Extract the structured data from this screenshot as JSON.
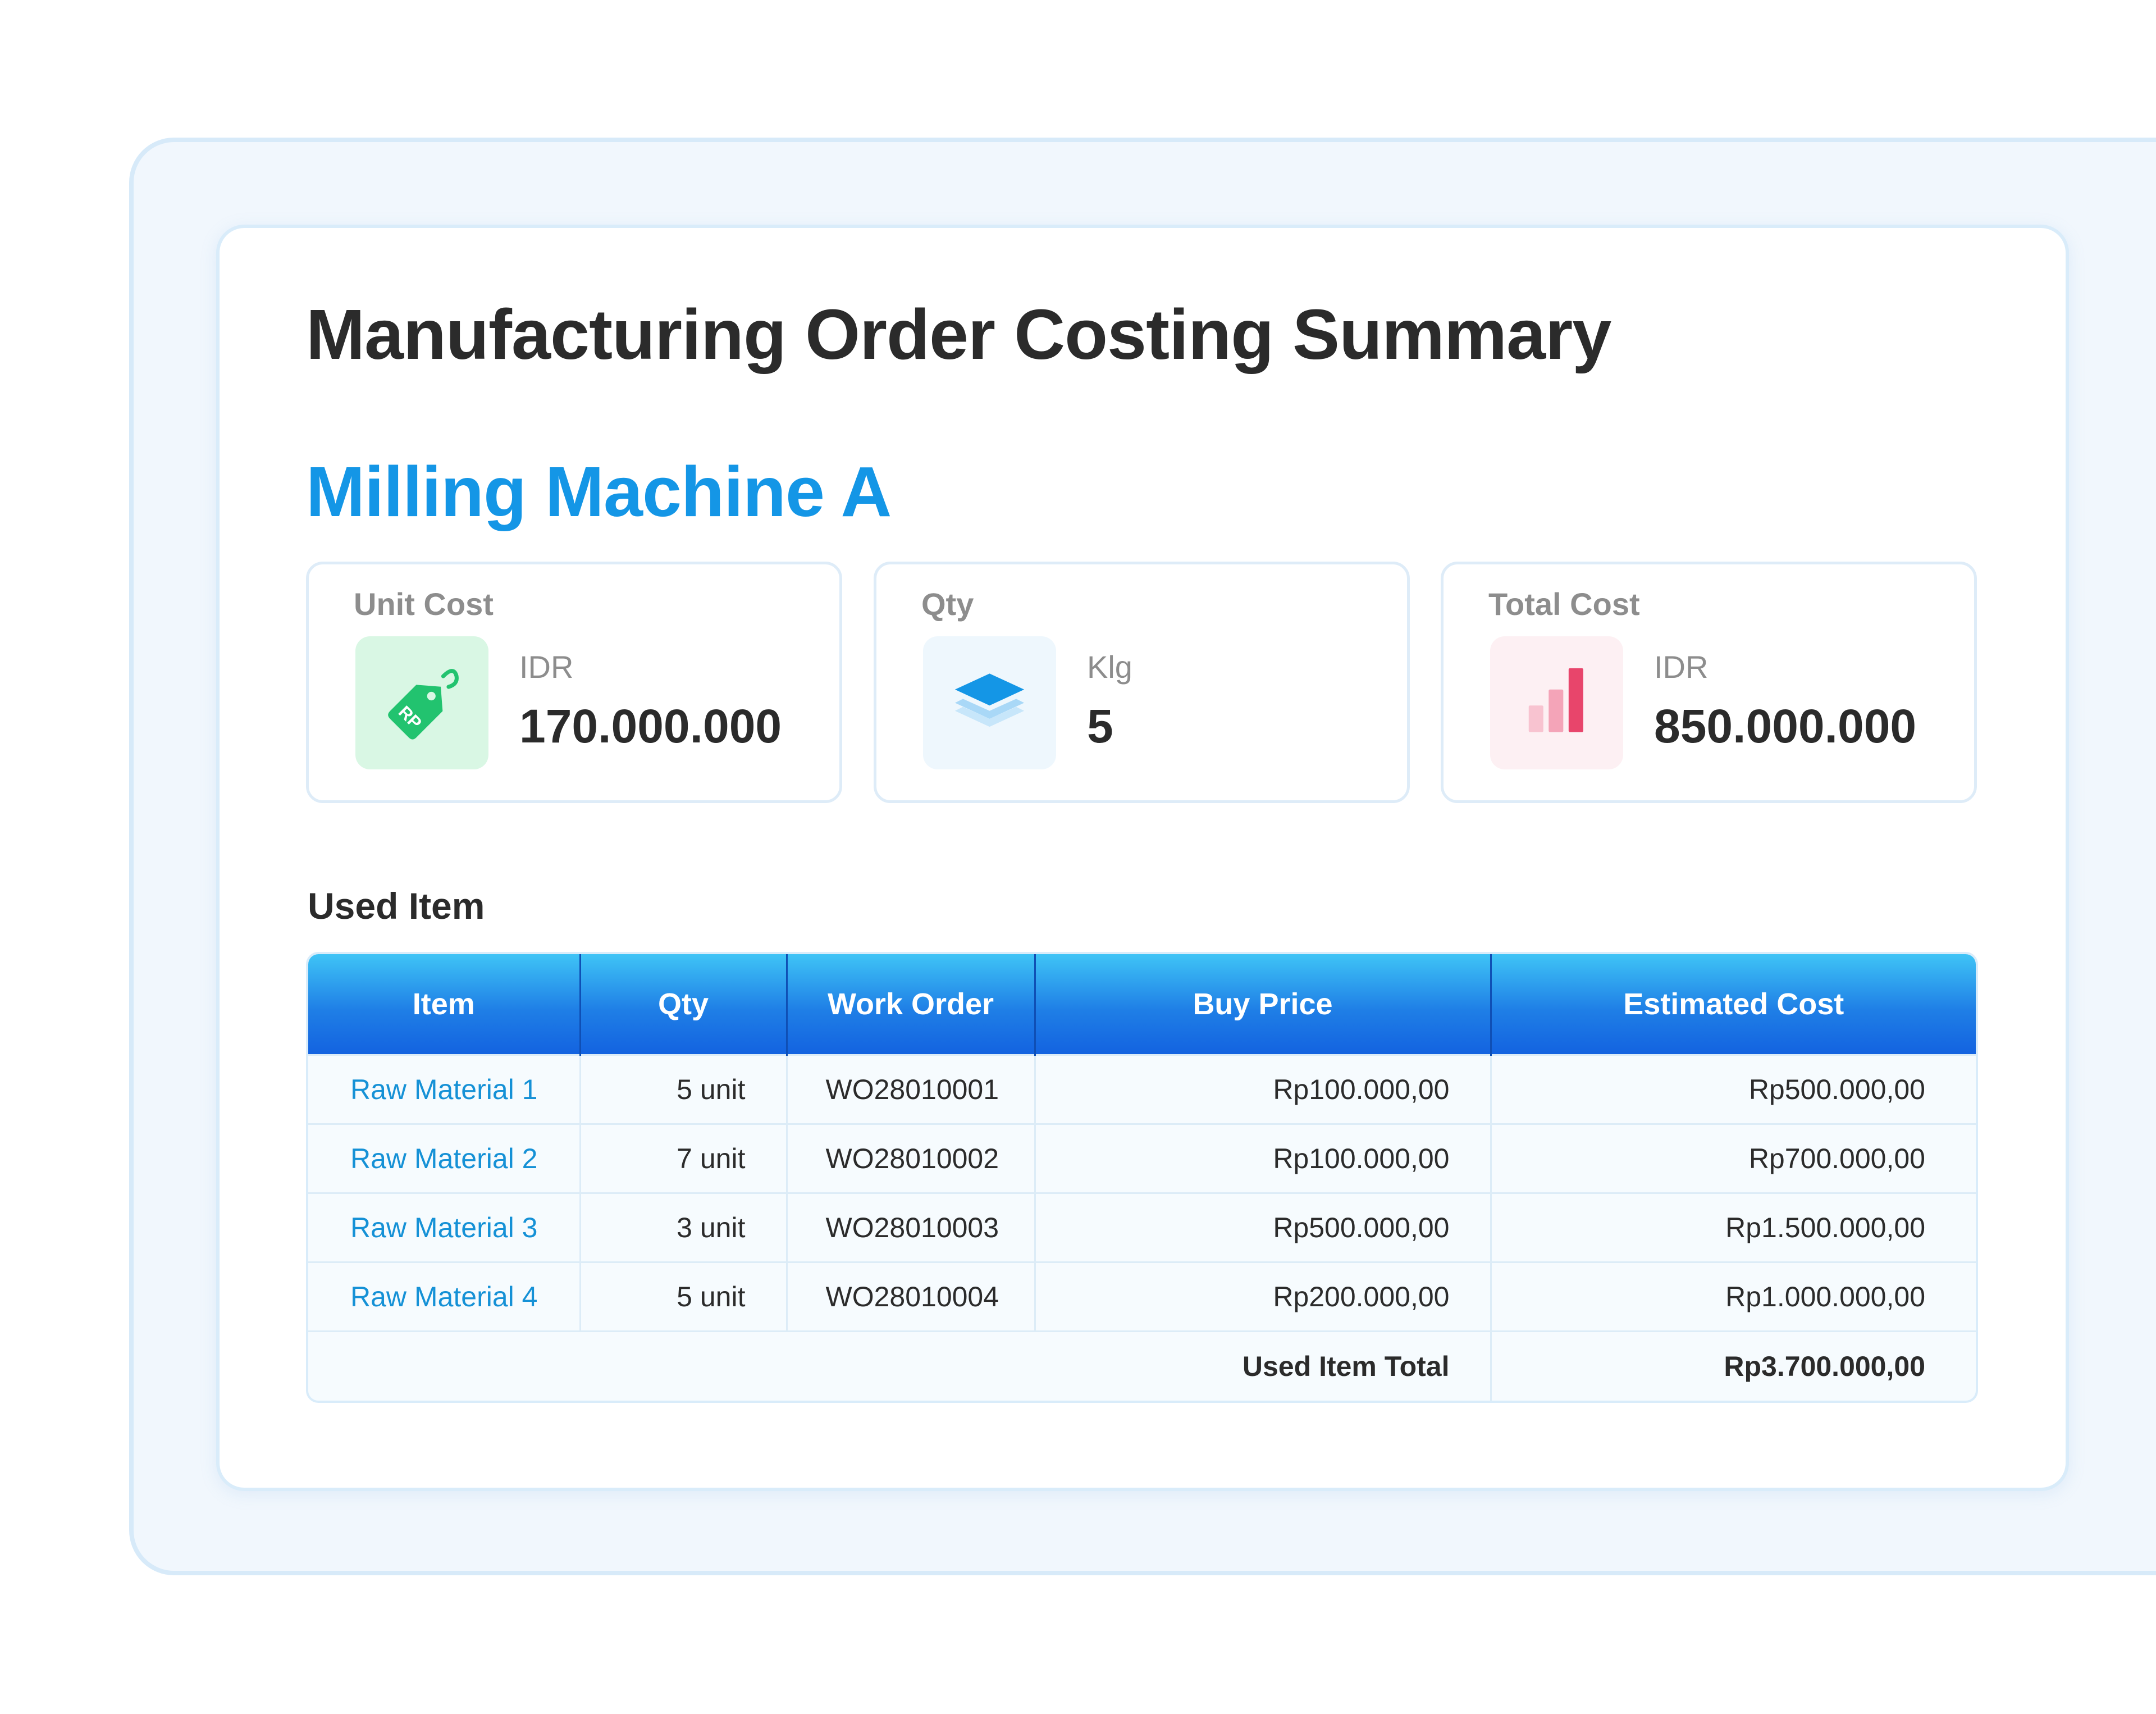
{
  "page": {
    "title": "Manufacturing Order Costing Summary",
    "machine_name": "Milling Machine A"
  },
  "stats": [
    {
      "label": "Unit Cost",
      "unit": "IDR",
      "value": "170.000.000",
      "icon": "price-tag-icon",
      "icon_text": "RP",
      "accent": "#22c36f"
    },
    {
      "label": "Qty",
      "unit": "Klg",
      "value": "5",
      "icon": "layers-icon",
      "accent": "#1496e6"
    },
    {
      "label": "Total Cost",
      "unit": "IDR",
      "value": "850.000.000",
      "icon": "bar-chart-icon",
      "accent": "#e8456b"
    }
  ],
  "used_item": {
    "section_title": "Used Item",
    "columns": [
      "Item",
      "Qty",
      "Work Order",
      "Buy Price",
      "Estimated Cost"
    ],
    "rows": [
      {
        "item": "Raw Material 1",
        "qty": "5 unit",
        "work_order": "WO28010001",
        "buy_price": "Rp100.000,00",
        "estimated_cost": "Rp500.000,00"
      },
      {
        "item": "Raw Material 2",
        "qty": "7 unit",
        "work_order": "WO28010002",
        "buy_price": "Rp100.000,00",
        "estimated_cost": "Rp700.000,00"
      },
      {
        "item": "Raw Material 3",
        "qty": "3 unit",
        "work_order": "WO28010003",
        "buy_price": "Rp500.000,00",
        "estimated_cost": "Rp1.500.000,00"
      },
      {
        "item": "Raw Material 4",
        "qty": "5 unit",
        "work_order": "WO28010004",
        "buy_price": "Rp200.000,00",
        "estimated_cost": "Rp1.000.000,00"
      }
    ],
    "total_label": "Used Item Total",
    "total_value": "Rp3.700.000,00"
  },
  "colors": {
    "accent_blue": "#1496e6",
    "header_gradient_top": "#3fc4f6",
    "header_gradient_bottom": "#1362e0",
    "link": "#1591d6"
  }
}
